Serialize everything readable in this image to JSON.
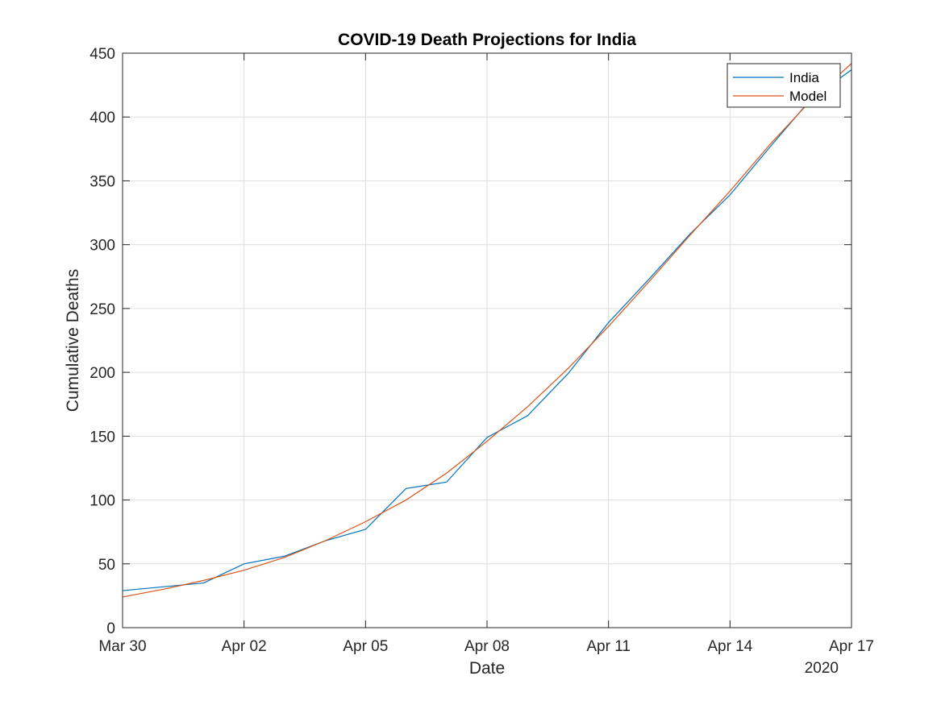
{
  "chart_data": {
    "type": "line",
    "title": "COVID-19 Death Projections for India",
    "xlabel": "Date",
    "ylabel": "Cumulative Deaths",
    "year_label": "2020",
    "x_dates": [
      "2020-03-30",
      "2020-03-31",
      "2020-04-01",
      "2020-04-02",
      "2020-04-03",
      "2020-04-04",
      "2020-04-05",
      "2020-04-06",
      "2020-04-07",
      "2020-04-08",
      "2020-04-09",
      "2020-04-10",
      "2020-04-11",
      "2020-04-12",
      "2020-04-13",
      "2020-04-14",
      "2020-04-15",
      "2020-04-16",
      "2020-04-17"
    ],
    "xlim": [
      "2020-03-30",
      "2020-04-17"
    ],
    "xticks": [
      {
        "date": "2020-03-30",
        "label": "Mar 30"
      },
      {
        "date": "2020-04-02",
        "label": "Apr 02"
      },
      {
        "date": "2020-04-05",
        "label": "Apr 05"
      },
      {
        "date": "2020-04-08",
        "label": "Apr 08"
      },
      {
        "date": "2020-04-11",
        "label": "Apr 11"
      },
      {
        "date": "2020-04-14",
        "label": "Apr 14"
      },
      {
        "date": "2020-04-17",
        "label": "Apr 17"
      }
    ],
    "ylim": [
      0,
      450
    ],
    "yticks": [
      0,
      50,
      100,
      150,
      200,
      250,
      300,
      350,
      400,
      450
    ],
    "grid": true,
    "legend_position": "top-right",
    "series": [
      {
        "name": "India",
        "color": "#0072BD",
        "values": [
          29,
          32,
          35,
          50,
          56,
          68,
          77,
          109,
          114,
          149,
          166,
          199,
          239,
          273,
          308,
          339,
          377,
          414,
          437
        ]
      },
      {
        "name": "Model",
        "color": "#D95319",
        "values": [
          24,
          30,
          37,
          45,
          55,
          68,
          83,
          100,
          121,
          146,
          173,
          203,
          236,
          271,
          307,
          342,
          379,
          413,
          442
        ]
      }
    ]
  }
}
